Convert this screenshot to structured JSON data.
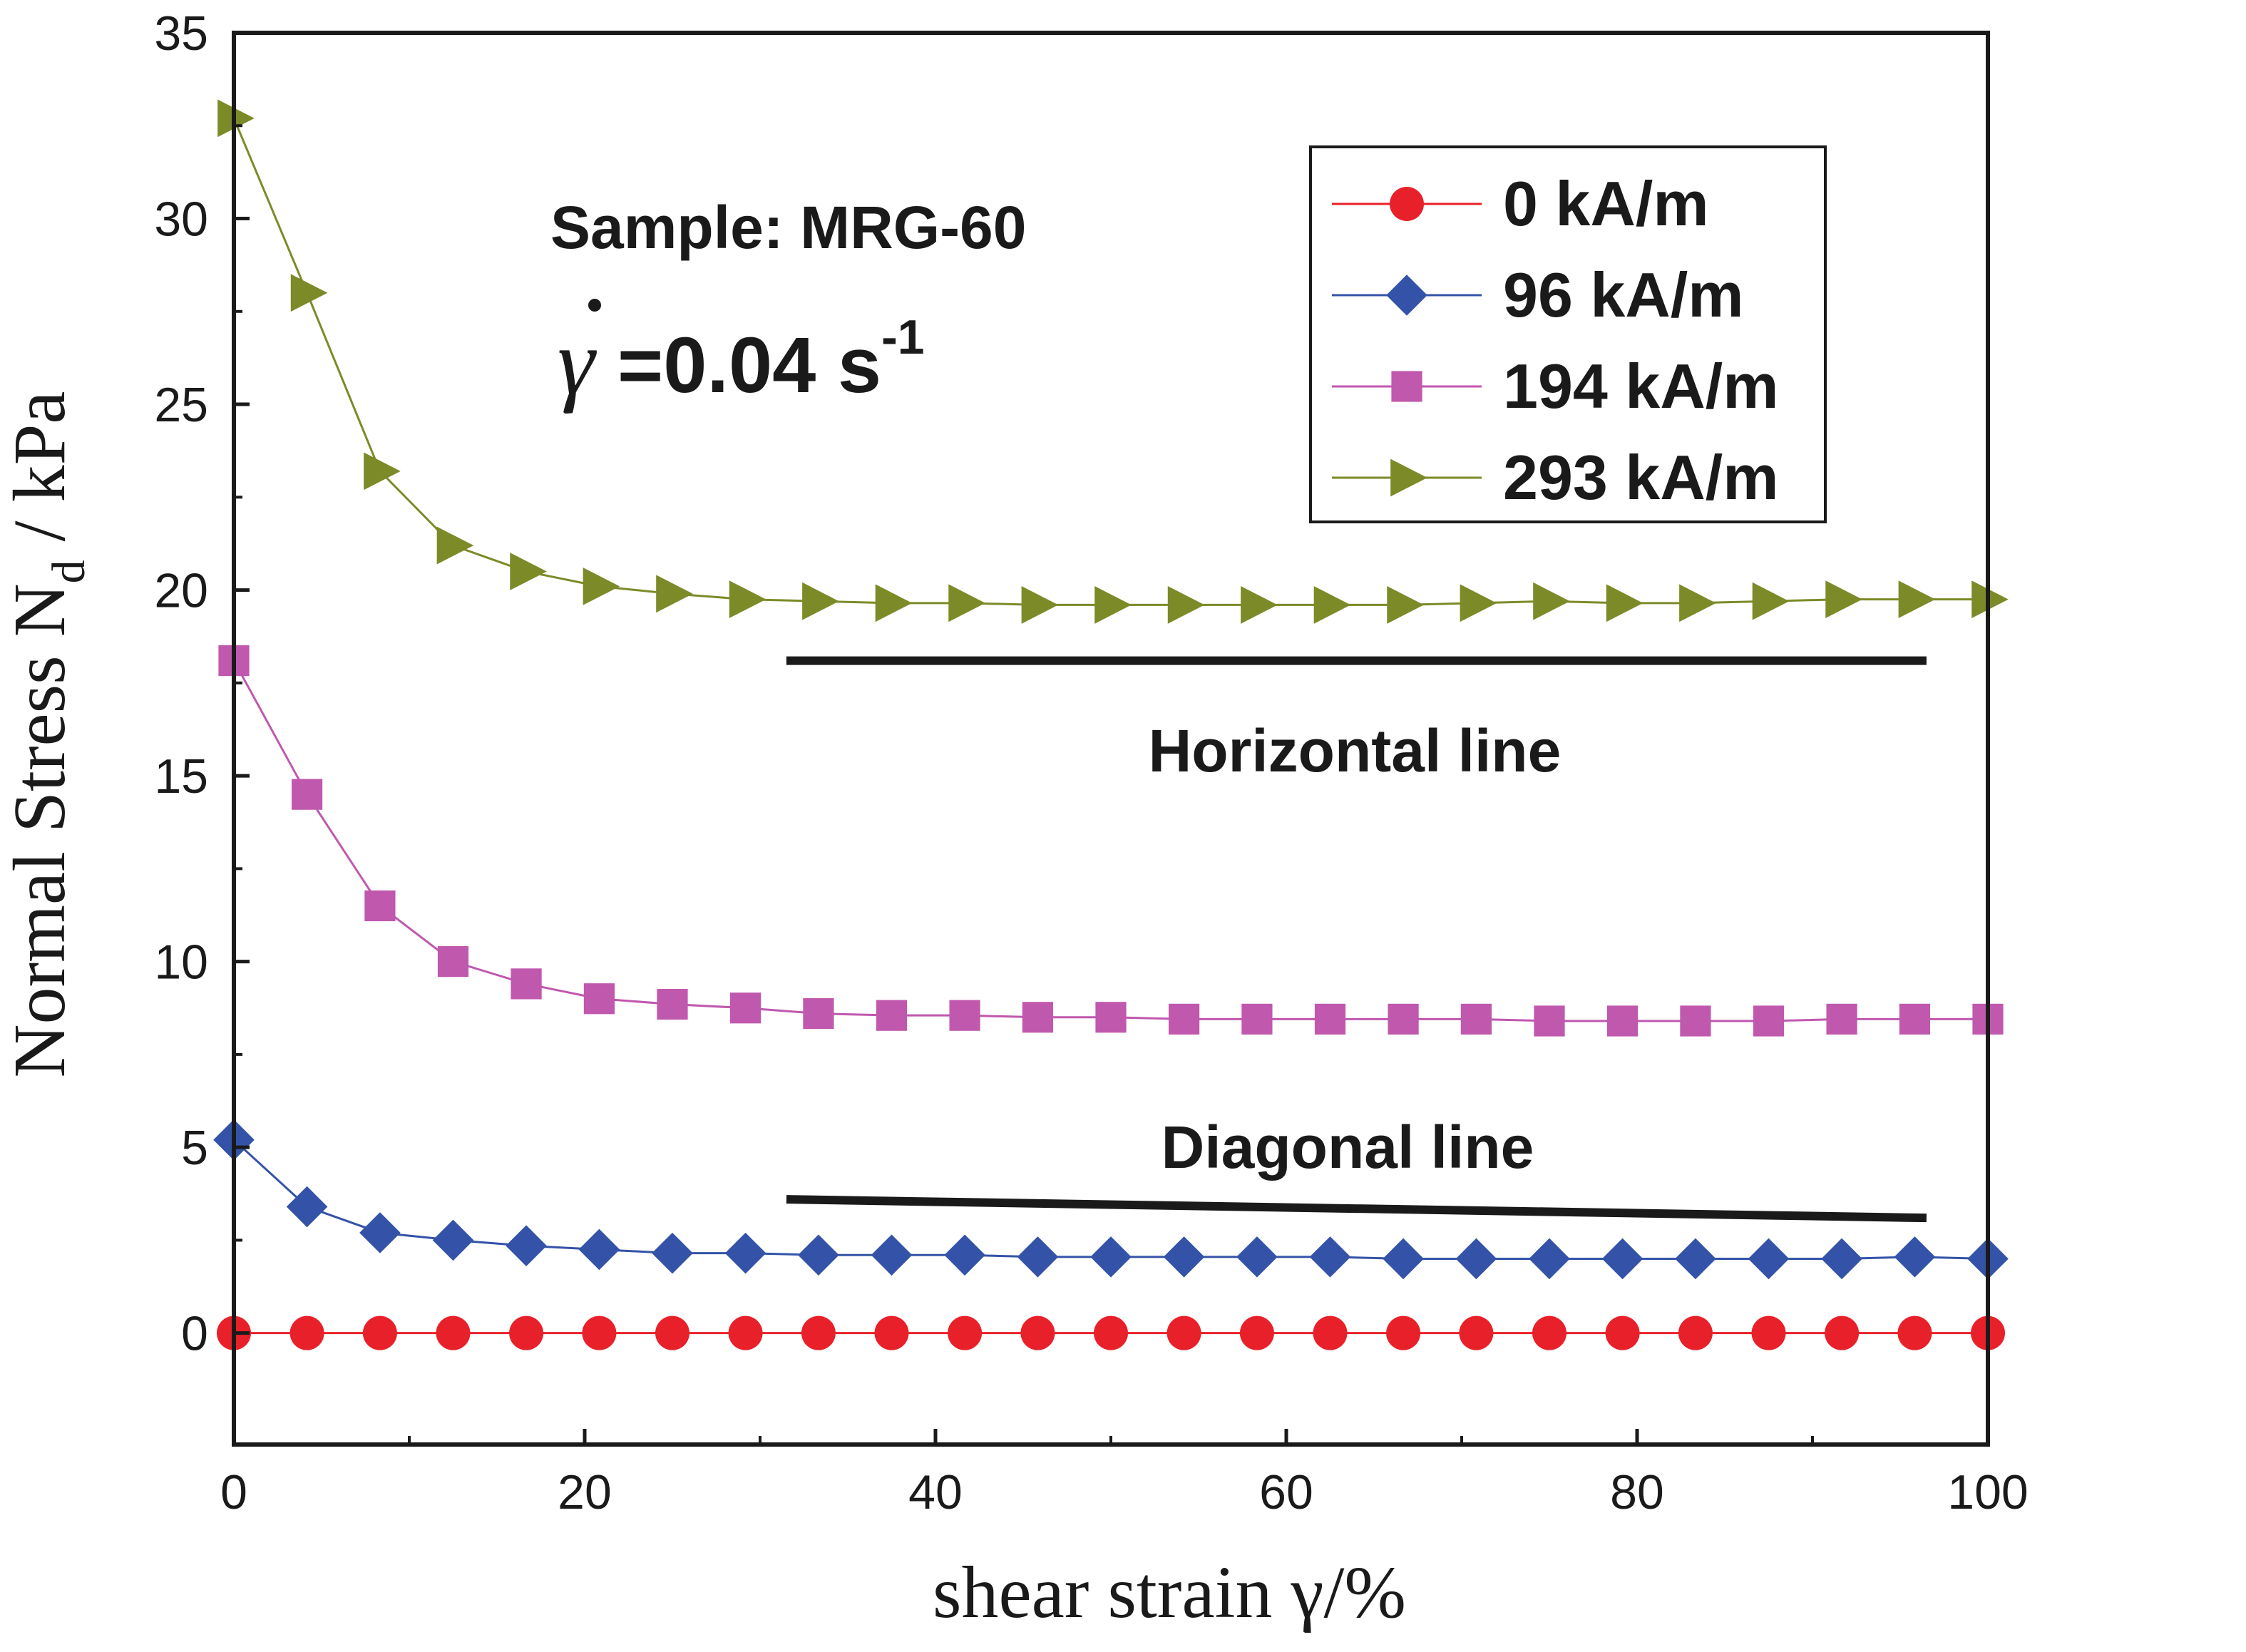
{
  "chart_data": {
    "type": "line",
    "title": "",
    "xlabel": "shear strain γ/%",
    "ylabel_main": "Normal Stress N",
    "ylabel_sub": "d",
    "ylabel_tail": " / kPa",
    "xlim": [
      0,
      100
    ],
    "ylim": [
      -3,
      35
    ],
    "xticks": [
      0,
      20,
      40,
      60,
      80,
      100
    ],
    "yticks": [
      0,
      5,
      10,
      15,
      20,
      25,
      30,
      35
    ],
    "x": [
      0,
      4.17,
      8.33,
      12.5,
      16.67,
      20.83,
      25,
      29.17,
      33.33,
      37.5,
      41.67,
      45.83,
      50,
      54.17,
      58.33,
      62.5,
      66.67,
      70.83,
      75,
      79.17,
      83.33,
      87.5,
      91.67,
      95.83,
      100
    ],
    "series": [
      {
        "name": "0 kA/m",
        "marker": "circle",
        "color": "#e8202a",
        "line_color": "#e8202a",
        "values": [
          0,
          0,
          0,
          0,
          0,
          0,
          0,
          0,
          0,
          0,
          0,
          0,
          0,
          0,
          0,
          0,
          0,
          0,
          0,
          0,
          0,
          0,
          0,
          0,
          0
        ]
      },
      {
        "name": "96 kA/m",
        "marker": "diamond",
        "color": "#3453a8",
        "line_color": "#3453a8",
        "values": [
          5.2,
          3.4,
          2.7,
          2.5,
          2.35,
          2.25,
          2.15,
          2.15,
          2.1,
          2.1,
          2.1,
          2.05,
          2.05,
          2.05,
          2.05,
          2.05,
          2.0,
          2.0,
          2.0,
          2.0,
          2.0,
          2.0,
          2.0,
          2.05,
          2.0
        ]
      },
      {
        "name": "194 kA/m",
        "marker": "square",
        "color": "#c058ae",
        "line_color": "#c058ae",
        "values": [
          18.1,
          14.5,
          11.5,
          10.0,
          9.4,
          9.0,
          8.85,
          8.75,
          8.6,
          8.55,
          8.55,
          8.5,
          8.5,
          8.45,
          8.45,
          8.45,
          8.45,
          8.45,
          8.4,
          8.4,
          8.4,
          8.4,
          8.45,
          8.45,
          8.45
        ]
      },
      {
        "name": "293 kA/m",
        "marker": "triangle-right",
        "color": "#7d8a28",
        "line_color": "#7d8a28",
        "values": [
          32.7,
          28.0,
          23.2,
          21.2,
          20.5,
          20.1,
          19.9,
          19.75,
          19.7,
          19.65,
          19.65,
          19.6,
          19.6,
          19.6,
          19.6,
          19.6,
          19.6,
          19.65,
          19.7,
          19.65,
          19.65,
          19.7,
          19.75,
          19.75,
          19.75
        ]
      }
    ],
    "reference_lines": [
      {
        "name": "horizontal-line",
        "x": [
          31.5,
          96.5
        ],
        "y": [
          18.1,
          18.1
        ]
      },
      {
        "name": "diagonal-line",
        "x": [
          31.5,
          96.5
        ],
        "y": [
          3.6,
          3.1
        ]
      }
    ],
    "annotations": {
      "sample": "Sample: MRG-60",
      "rate_main": "=0.04 s",
      "rate_sup": "-1",
      "horizontal_line_label": "Horizontal line",
      "diagonal_line_label": "Diagonal line"
    },
    "legend_position": "top-right",
    "frame_color": "#1a1a1a"
  }
}
